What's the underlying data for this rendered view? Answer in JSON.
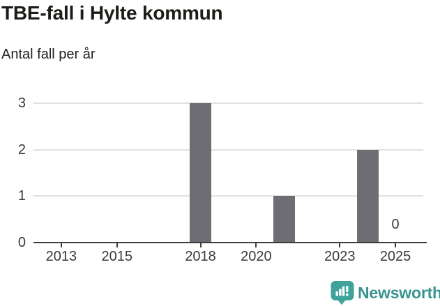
{
  "header": {
    "title": "TBE-fall i Hylte kommun",
    "subtitle": "Antal fall per år"
  },
  "chart_data": {
    "type": "bar",
    "title": "TBE-fall i Hylte kommun",
    "subtitle": "Antal fall per år",
    "xlabel": "",
    "ylabel": "",
    "x_range": [
      2012,
      2026
    ],
    "ylim": [
      0,
      3
    ],
    "x_ticks": [
      2013,
      2015,
      2018,
      2020,
      2023,
      2025
    ],
    "y_ticks": [
      0,
      1,
      2,
      3
    ],
    "grid": "horizontal",
    "legend": "none",
    "points": [
      {
        "year": 2018,
        "value": 3
      },
      {
        "year": 2021,
        "value": 1
      },
      {
        "year": 2024,
        "value": 2
      },
      {
        "year": 2025,
        "value": 0,
        "data_label": "0"
      }
    ]
  },
  "footer": {
    "brand": "Newsworthy",
    "logo_icon": "newsworthy-speech-bubble-bar-chart-icon"
  },
  "colors": {
    "background": "#ffffff",
    "title": "#1b1b17",
    "subtitle": "#222222",
    "tick_text": "#3a3a3a",
    "grid": "#e1e1e1",
    "axis": "#3d3d3d",
    "bar": "#6e6d73",
    "brand_teal": "#3fa39b",
    "brand_text_teal": "#38948e"
  }
}
